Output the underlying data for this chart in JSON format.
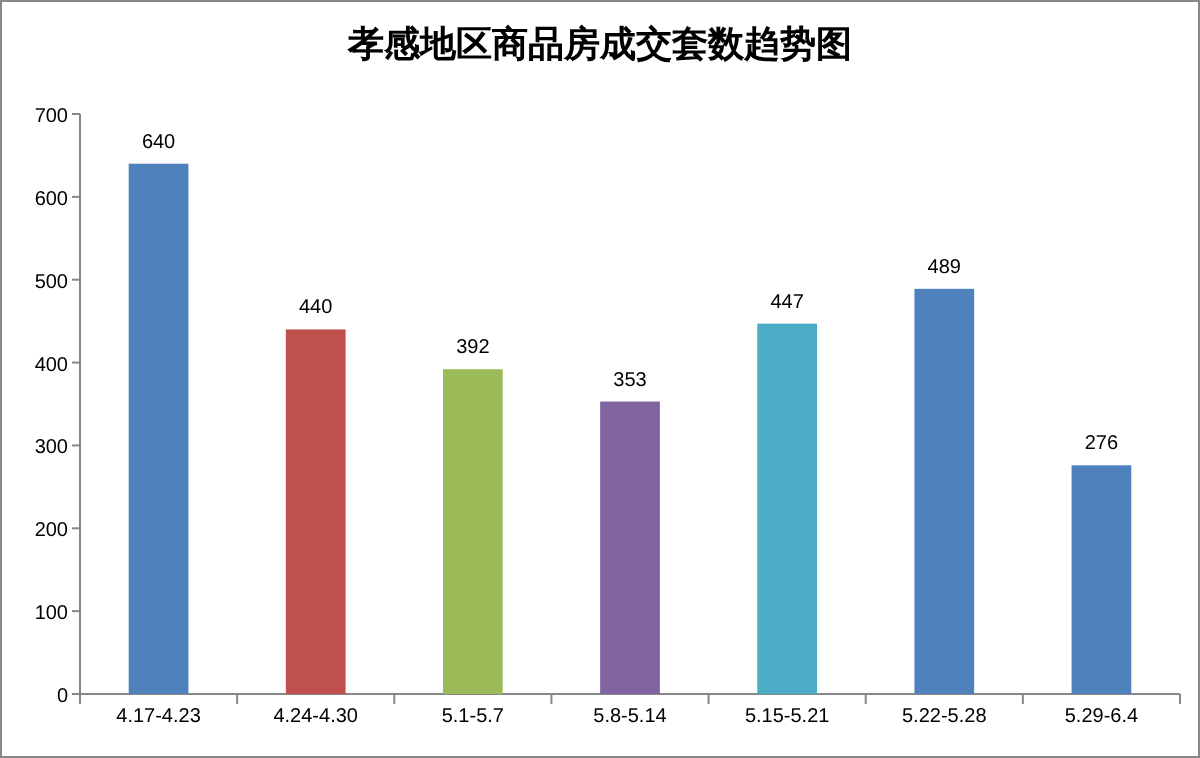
{
  "chart_data": {
    "type": "bar",
    "title": "孝感地区商品房成交套数趋势图",
    "categories": [
      "4.17-4.23",
      "4.24-4.30",
      "5.1-5.7",
      "5.8-5.14",
      "5.15-5.21",
      "5.22-5.28",
      "5.29-6.4"
    ],
    "values": [
      640,
      440,
      392,
      353,
      447,
      489,
      276
    ],
    "colors": [
      "#4f81bd",
      "#c0504d",
      "#9bbb59",
      "#8064a2",
      "#4bacc6",
      "#4f81bd",
      "#4f81bd"
    ],
    "ylim": [
      0,
      700
    ],
    "yticks": [
      0,
      100,
      200,
      300,
      400,
      500,
      600,
      700
    ],
    "data_labels": true,
    "grid": false
  }
}
